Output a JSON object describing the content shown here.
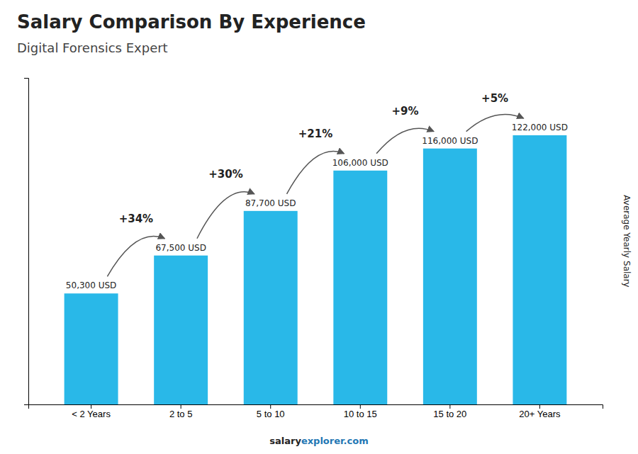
{
  "chart_data": {
    "type": "bar",
    "title": "Salary Comparison By Experience",
    "subtitle": "Digital Forensics Expert",
    "categories": [
      "< 2 Years",
      "2 to 5",
      "5 to 10",
      "10 to 15",
      "15 to 20",
      "20+ Years"
    ],
    "values": [
      50300,
      67500,
      87700,
      106000,
      116000,
      122000
    ],
    "value_labels": [
      "50,300 USD",
      "67,500 USD",
      "87,700 USD",
      "106,000 USD",
      "116,000 USD",
      "122,000 USD"
    ],
    "data_labels": true,
    "annotations": [
      "+34%",
      "+30%",
      "+21%",
      "+9%",
      "+5%"
    ],
    "color": "#29b8e8",
    "ylabel": "Average Yearly Salary",
    "footer": [
      "salary",
      "explorer.com"
    ],
    "ylim": [
      0,
      148000
    ],
    "tick_labels": "x"
  }
}
